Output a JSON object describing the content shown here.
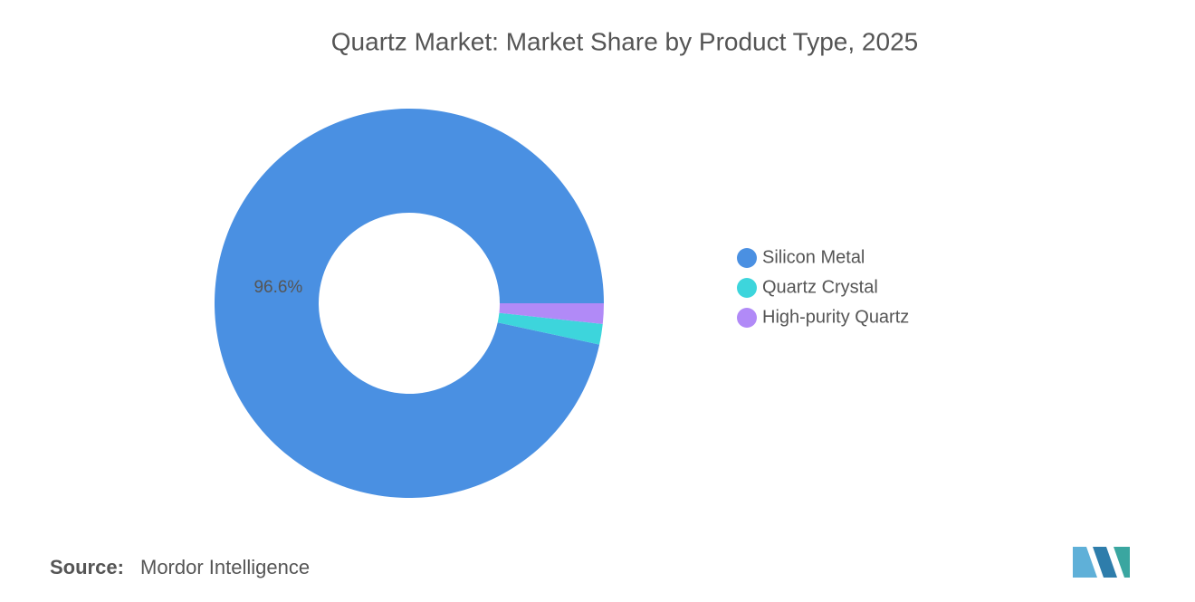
{
  "chart_data": {
    "type": "donut",
    "title": "Quartz Market: Market Share by Product Type, 2025",
    "series": [
      {
        "name": "Silicon Metal",
        "color": "#4a90e2",
        "values": [
          96.6
        ],
        "value_labels": [
          "96.6%"
        ]
      },
      {
        "name": "Quartz Crystal",
        "color": "#3dd5dc",
        "values": [
          1.7
        ]
      },
      {
        "name": "High-purity Quartz",
        "color": "#b18af7",
        "values": [
          1.7
        ]
      }
    ],
    "legend": "right",
    "source_label": "Source:",
    "source": "Mordor Intelligence"
  }
}
